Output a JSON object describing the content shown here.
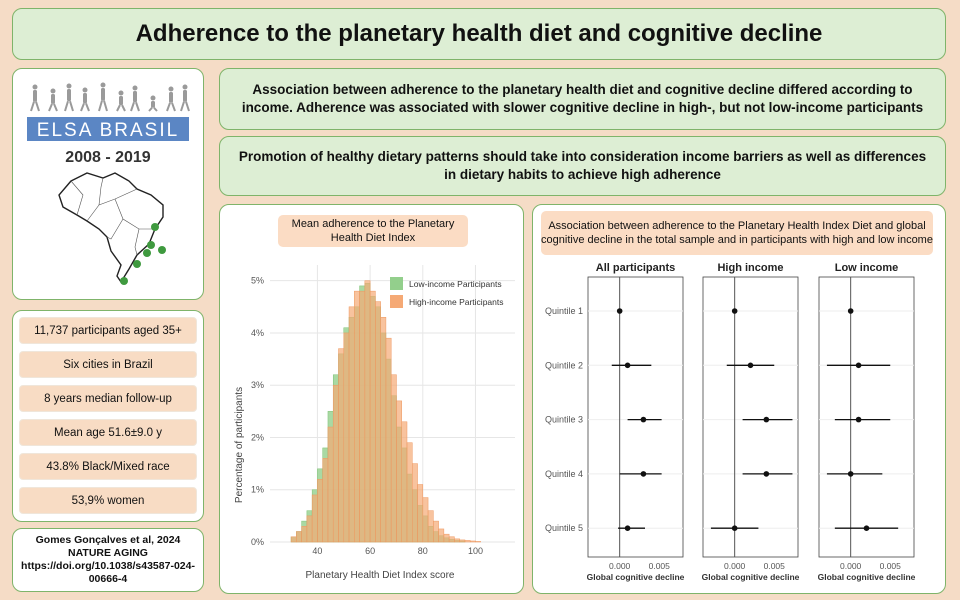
{
  "title": "Adherence to the planetary health diet and cognitive decline",
  "logo": {
    "text": "ELSA BRASIL",
    "years": "2008 - 2019",
    "colors": {
      "logo_band": "#5b86c4",
      "map_dot": "#3f9a3f"
    }
  },
  "messages": [
    "Association between adherence to the planetary health diet and cognitive decline differed according to income. Adherence was associated with slower cognitive decline in high-, but not low-income participants",
    "Promotion of healthy dietary patterns should take into consideration income barriers as well as differences in dietary habits to achieve high adherence"
  ],
  "stats": [
    "11,737 participants aged 35+",
    "Six cities in Brazil",
    "8 years median follow-up",
    "Mean age 51.6±9.0 y",
    "43.8% Black/Mixed race",
    "53,9% women"
  ],
  "citation": "Gomes Gonçalves et al, 2024 NATURE AGING https://doi.org/10.1038/s43587-024-00666-4",
  "histogram": {
    "title": "Mean adherence to the Planetary Health Diet Index",
    "chart_data": {
      "type": "bar",
      "xlabel": "Planetary Health Diet Index score",
      "ylabel": "Percentage of participants",
      "x_ticks": [
        40,
        60,
        80,
        100
      ],
      "y_ticks": [
        "0%",
        "1%",
        "2%",
        "3%",
        "4%",
        "5%"
      ],
      "xlim": [
        22,
        115
      ],
      "ylim": [
        0,
        5.3
      ],
      "bin_width": 2,
      "series": [
        {
          "name": "Low-income Participants",
          "color": "#93cf8c",
          "bins": [
            [
              30,
              0.1
            ],
            [
              32,
              0.2
            ],
            [
              34,
              0.4
            ],
            [
              36,
              0.6
            ],
            [
              38,
              1.0
            ],
            [
              40,
              1.4
            ],
            [
              42,
              1.8
            ],
            [
              44,
              2.5
            ],
            [
              46,
              3.2
            ],
            [
              48,
              3.6
            ],
            [
              50,
              4.1
            ],
            [
              52,
              4.3
            ],
            [
              54,
              4.5
            ],
            [
              56,
              4.9
            ],
            [
              58,
              4.95
            ],
            [
              60,
              4.7
            ],
            [
              62,
              4.5
            ],
            [
              64,
              4.0
            ],
            [
              66,
              3.5
            ],
            [
              68,
              2.8
            ],
            [
              70,
              2.2
            ],
            [
              72,
              1.8
            ],
            [
              74,
              1.3
            ],
            [
              76,
              1.0
            ],
            [
              78,
              0.7
            ],
            [
              80,
              0.5
            ],
            [
              82,
              0.3
            ],
            [
              84,
              0.2
            ],
            [
              86,
              0.12
            ],
            [
              88,
              0.08
            ],
            [
              90,
              0.05
            ],
            [
              92,
              0.03
            ],
            [
              94,
              0.02
            ]
          ]
        },
        {
          "name": "High-income Participants",
          "color": "#f5a975",
          "bins": [
            [
              30,
              0.1
            ],
            [
              32,
              0.2
            ],
            [
              34,
              0.3
            ],
            [
              36,
              0.5
            ],
            [
              38,
              0.9
            ],
            [
              40,
              1.2
            ],
            [
              42,
              1.6
            ],
            [
              44,
              2.2
            ],
            [
              46,
              3.0
            ],
            [
              48,
              3.7
            ],
            [
              50,
              4.0
            ],
            [
              52,
              4.5
            ],
            [
              54,
              4.8
            ],
            [
              56,
              4.8
            ],
            [
              58,
              5.0
            ],
            [
              60,
              4.8
            ],
            [
              62,
              4.6
            ],
            [
              64,
              4.3
            ],
            [
              66,
              3.9
            ],
            [
              68,
              3.2
            ],
            [
              70,
              2.7
            ],
            [
              72,
              2.3
            ],
            [
              74,
              1.9
            ],
            [
              76,
              1.5
            ],
            [
              78,
              1.1
            ],
            [
              80,
              0.85
            ],
            [
              82,
              0.6
            ],
            [
              84,
              0.4
            ],
            [
              86,
              0.25
            ],
            [
              88,
              0.15
            ],
            [
              90,
              0.1
            ],
            [
              92,
              0.06
            ],
            [
              94,
              0.04
            ],
            [
              96,
              0.03
            ],
            [
              98,
              0.02
            ],
            [
              100,
              0.01
            ]
          ]
        }
      ]
    }
  },
  "forest": {
    "title": "Association between adherence to the Planetary Health Index Diet and global cognitive decline in the total sample and in participants with high and low income",
    "chart_data": {
      "type": "scatter",
      "rows": [
        "Quintile 1",
        "Quintile 2",
        "Quintile 3",
        "Quintile 4",
        "Quintile 5"
      ],
      "xlabel": "Global cognitive decline",
      "xlim": [
        -0.004,
        0.008
      ],
      "x_ticks": [
        "0.000",
        "0.005"
      ],
      "x_tick_values": [
        0,
        0.005
      ],
      "panels": [
        {
          "name": "All participants",
          "estimates": [
            0,
            0.001,
            0.003,
            0.003,
            0.001
          ],
          "lower": [
            0,
            -0.001,
            0.001,
            0,
            -0.0002
          ],
          "upper": [
            0,
            0.004,
            0.0053,
            0.0053,
            0.0032
          ]
        },
        {
          "name": "High income",
          "estimates": [
            0,
            0.002,
            0.004,
            0.004,
            0
          ],
          "lower": [
            0,
            -0.001,
            0.001,
            0.001,
            -0.003
          ],
          "upper": [
            0,
            0.005,
            0.0073,
            0.0073,
            0.003
          ]
        },
        {
          "name": "Low income",
          "estimates": [
            0,
            0.001,
            0.001,
            0,
            0.002
          ],
          "lower": [
            0,
            -0.003,
            -0.002,
            -0.003,
            -0.002
          ],
          "upper": [
            0,
            0.005,
            0.005,
            0.004,
            0.006
          ]
        }
      ]
    }
  }
}
